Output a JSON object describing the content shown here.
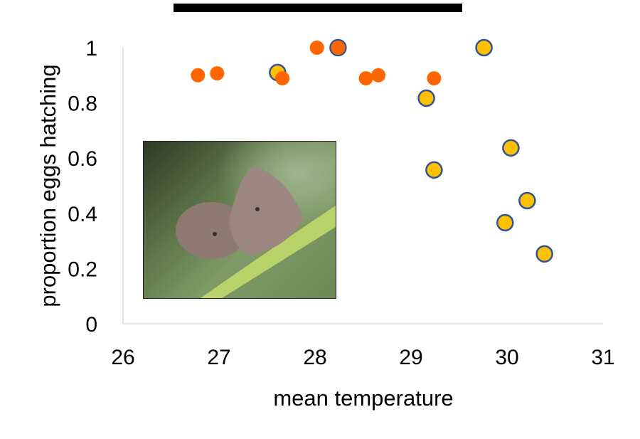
{
  "chart_data": {
    "type": "scatter",
    "xlabel": "mean temperature",
    "ylabel": "proportion eggs hatching",
    "xlim": [
      26,
      31
    ],
    "ylim": [
      0,
      1
    ],
    "xticks": [
      "26",
      "27",
      "28",
      "29",
      "30",
      "31"
    ],
    "yticks": [
      "0",
      "0.2",
      "0.4",
      "0.6",
      "0.8",
      "1"
    ],
    "grid": false,
    "series": [
      {
        "color": "#FF6600",
        "points": [
          [
            26.78,
            0.9
          ],
          [
            26.98,
            0.907
          ],
          [
            27.66,
            0.889
          ],
          [
            28.02,
            1.0
          ],
          [
            28.24,
            1.0
          ],
          [
            28.53,
            0.889
          ],
          [
            28.66,
            0.9
          ],
          [
            29.24,
            0.889
          ]
        ]
      },
      {
        "color": "#FFC000",
        "edge": "#2F5597",
        "points": [
          [
            27.61,
            0.91
          ],
          [
            28.24,
            1.0
          ],
          [
            29.76,
            1.0
          ],
          [
            29.16,
            0.817
          ],
          [
            29.24,
            0.557
          ],
          [
            30.04,
            0.637
          ],
          [
            30.21,
            0.446
          ],
          [
            29.98,
            0.366
          ],
          [
            30.39,
            0.253
          ]
        ]
      }
    ],
    "inset_image": "butterfly-photo"
  }
}
